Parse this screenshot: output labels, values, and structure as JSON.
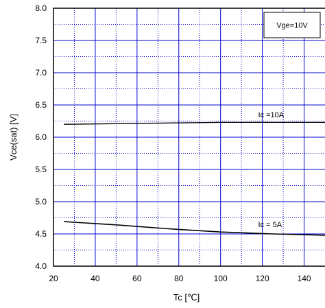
{
  "chart_data": {
    "type": "line",
    "xlabel": "Tc [℃]",
    "ylabel": "Vce(sat) [V]",
    "xlim": [
      20,
      150
    ],
    "ylim": [
      4.0,
      8.0
    ],
    "x_ticks": [
      20,
      40,
      60,
      80,
      100,
      120,
      140
    ],
    "x_tick_labels": [
      "20",
      "40",
      "60",
      "80",
      "100",
      "120",
      "140"
    ],
    "y_ticks": [
      4.0,
      4.5,
      5.0,
      5.5,
      6.0,
      6.5,
      7.0,
      7.5,
      8.0
    ],
    "y_tick_labels": [
      "4.0",
      "4.5",
      "5.0",
      "5.5",
      "6.0",
      "6.5",
      "7.0",
      "7.5",
      "8.0"
    ],
    "grid": true,
    "condition_label": "Vge=10V",
    "series": [
      {
        "name": "Ic =10A",
        "color": "#000000",
        "x": [
          25,
          50,
          75,
          100,
          125,
          150
        ],
        "y": [
          6.2,
          6.21,
          6.22,
          6.23,
          6.23,
          6.23
        ]
      },
      {
        "name": "Ic = 5A",
        "color": "#000000",
        "x": [
          25,
          50,
          75,
          100,
          125,
          150
        ],
        "y": [
          4.69,
          4.64,
          4.58,
          4.53,
          4.5,
          4.48
        ]
      }
    ],
    "colors": {
      "grid_major": "#0000cc",
      "grid_minor": "#0000cc",
      "frame": "#000000"
    }
  }
}
